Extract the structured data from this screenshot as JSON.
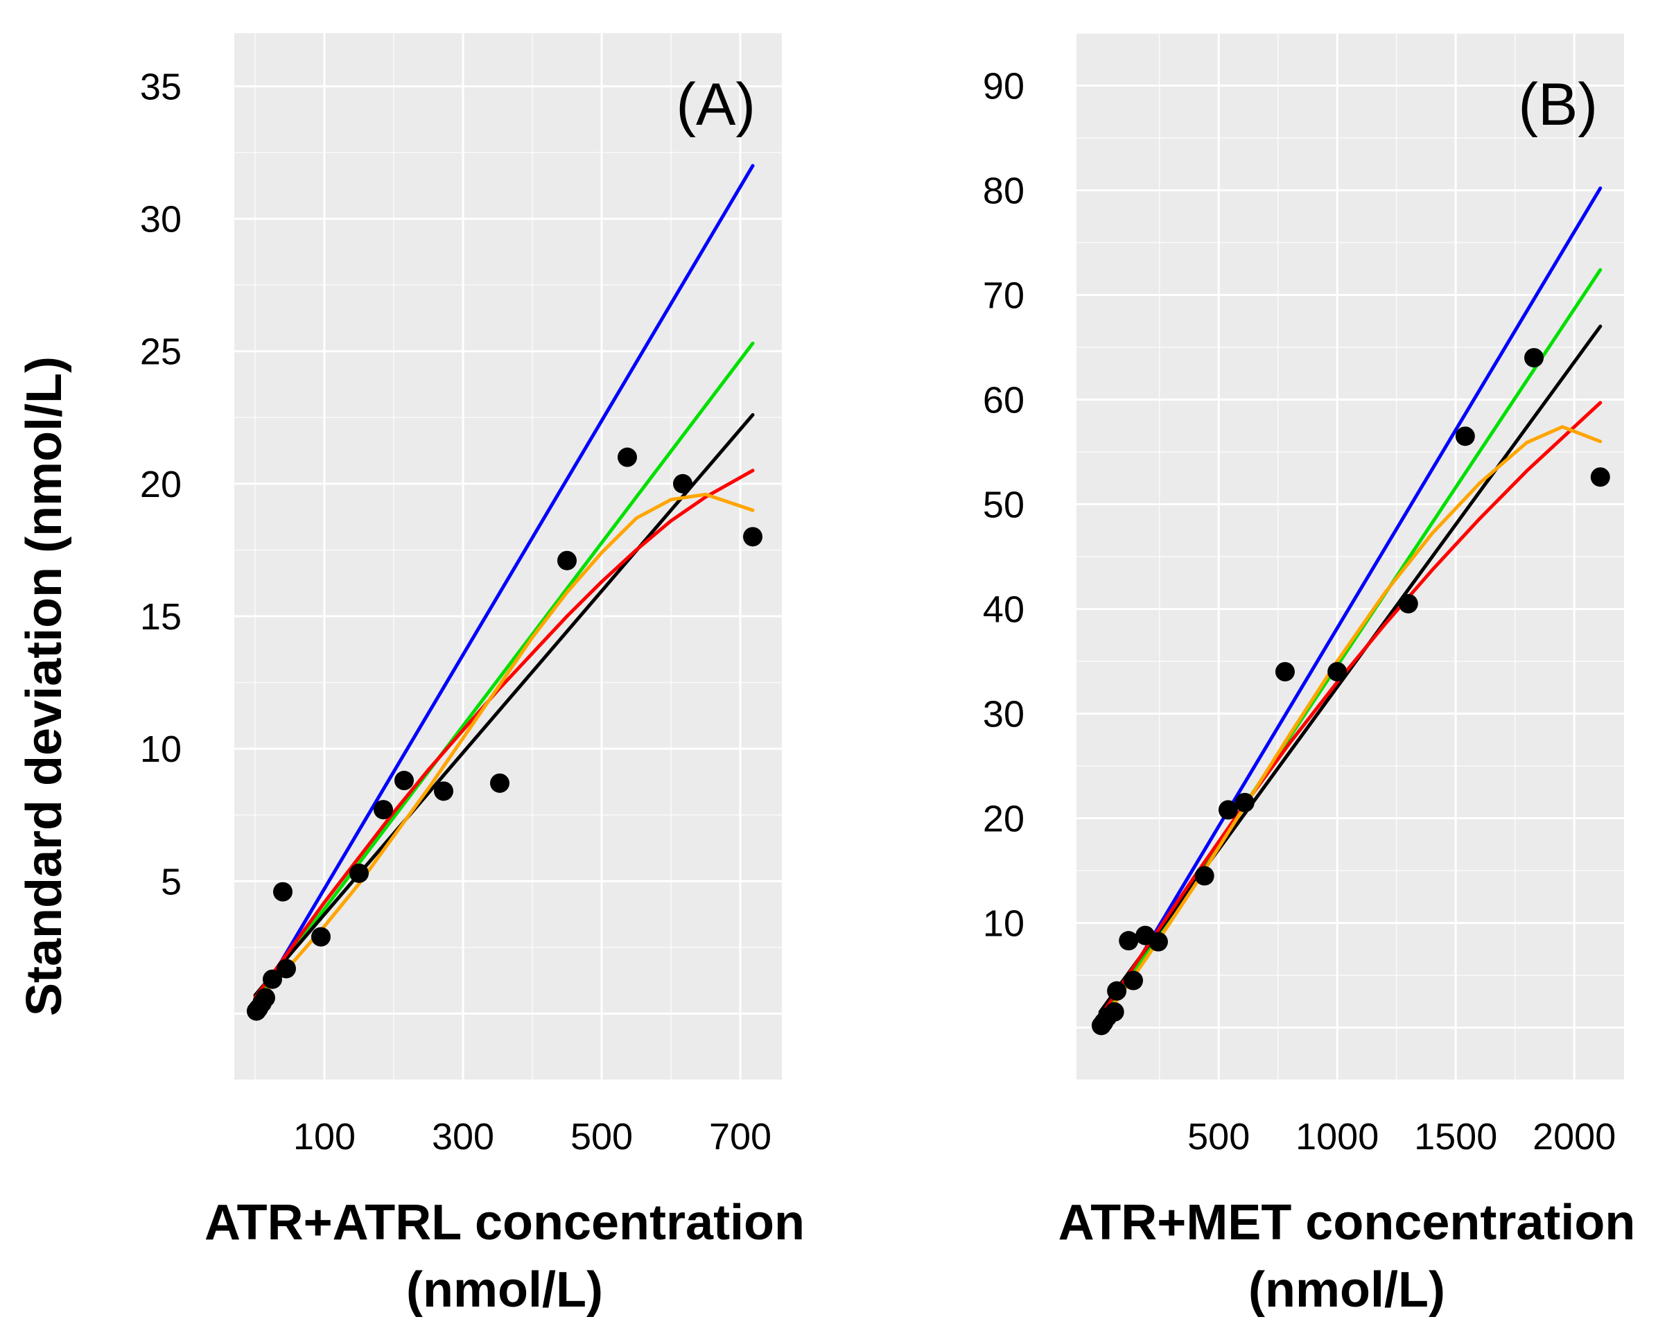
{
  "y_axis_title": "Standard deviation (nmol/L)",
  "colors": {
    "blue": "#0000ff",
    "green": "#00e000",
    "black": "#000000",
    "red": "#ff0000",
    "orange": "#ffa500",
    "points": "#000000",
    "panel_background": "#ebebeb"
  },
  "chart_data": [
    {
      "type": "scatter",
      "title": "(A)",
      "xlabel": "ATR+ATRL concentration (nmol/L)",
      "xlabel_lines": [
        "ATR+ATRL concentration",
        "(nmol/L)"
      ],
      "ylabel": "Standard deviation (nmol/L)",
      "xlim": [
        -30,
        760
      ],
      "ylim": [
        -2.5,
        37
      ],
      "x_ticks": [
        100,
        300,
        500,
        700
      ],
      "x_tick_labels": [
        "100",
        "300",
        "500",
        "700"
      ],
      "y_ticks": [
        5,
        10,
        15,
        20,
        25,
        30,
        35
      ],
      "y_tick_labels": [
        "5",
        "10",
        "15",
        "20",
        "25",
        "30",
        "35"
      ],
      "y_minor_ticks": [
        0
      ],
      "grid": true,
      "legend": "none",
      "points": [
        {
          "x": 2,
          "y": 0.1
        },
        {
          "x": 5,
          "y": 0.2
        },
        {
          "x": 10,
          "y": 0.4
        },
        {
          "x": 15,
          "y": 0.6
        },
        {
          "x": 25,
          "y": 1.3
        },
        {
          "x": 40,
          "y": 4.6
        },
        {
          "x": 45,
          "y": 1.7
        },
        {
          "x": 95,
          "y": 2.9
        },
        {
          "x": 150,
          "y": 5.3
        },
        {
          "x": 185,
          "y": 7.7
        },
        {
          "x": 215,
          "y": 8.8
        },
        {
          "x": 272,
          "y": 8.4
        },
        {
          "x": 353,
          "y": 8.7
        },
        {
          "x": 450,
          "y": 17.1
        },
        {
          "x": 537,
          "y": 21.0
        },
        {
          "x": 617,
          "y": 20.0
        },
        {
          "x": 718,
          "y": 18.0
        }
      ],
      "series": [
        {
          "name": "blue",
          "color": "#0000ff",
          "x": [
            0,
            718
          ],
          "y": [
            0.3,
            32.0
          ]
        },
        {
          "name": "green",
          "color": "#00e000",
          "x": [
            0,
            718
          ],
          "y": [
            0.5,
            25.3
          ]
        },
        {
          "name": "black",
          "color": "#000000",
          "x": [
            0,
            718
          ],
          "y": [
            0.7,
            22.6
          ]
        },
        {
          "name": "red",
          "color": "#ff0000",
          "x": [
            0,
            50,
            100,
            150,
            200,
            250,
            300,
            350,
            400,
            450,
            500,
            550,
            600,
            650,
            718
          ],
          "y": [
            0.6,
            2.4,
            4.2,
            5.9,
            7.6,
            9.2,
            10.7,
            12.2,
            13.6,
            15.0,
            16.3,
            17.5,
            18.6,
            19.5,
            20.5
          ]
        },
        {
          "name": "orange",
          "color": "#ffa500",
          "x": [
            0,
            50,
            100,
            150,
            200,
            250,
            300,
            350,
            400,
            450,
            500,
            550,
            600,
            650,
            718
          ],
          "y": [
            0.4,
            1.8,
            3.3,
            4.9,
            6.7,
            8.5,
            10.4,
            12.3,
            14.2,
            15.9,
            17.4,
            18.7,
            19.4,
            19.6,
            19.0
          ]
        }
      ]
    },
    {
      "type": "scatter",
      "title": "(B)",
      "xlabel": "ATR+MET concentration (nmol/L)",
      "xlabel_lines": [
        "ATR+MET concentration",
        "(nmol/L)"
      ],
      "ylabel": "",
      "xlim": [
        -100,
        2210
      ],
      "ylim": [
        -5,
        95
      ],
      "x_ticks": [
        500,
        1000,
        1500,
        2000
      ],
      "x_tick_labels": [
        "500",
        "1000",
        "1500",
        "2000"
      ],
      "y_ticks": [
        10,
        20,
        30,
        40,
        50,
        60,
        70,
        80,
        90
      ],
      "y_tick_labels": [
        "10",
        "20",
        "30",
        "40",
        "50",
        "60",
        "70",
        "80",
        "90"
      ],
      "y_minor_ticks": [
        0
      ],
      "grid": true,
      "legend": "none",
      "points": [
        {
          "x": 5,
          "y": 0.2
        },
        {
          "x": 15,
          "y": 0.5
        },
        {
          "x": 30,
          "y": 1.0
        },
        {
          "x": 60,
          "y": 1.5
        },
        {
          "x": 70,
          "y": 3.5
        },
        {
          "x": 120,
          "y": 8.3
        },
        {
          "x": 140,
          "y": 4.5
        },
        {
          "x": 190,
          "y": 8.8
        },
        {
          "x": 245,
          "y": 8.2
        },
        {
          "x": 440,
          "y": 14.5
        },
        {
          "x": 540,
          "y": 20.8
        },
        {
          "x": 610,
          "y": 21.5
        },
        {
          "x": 780,
          "y": 34.0
        },
        {
          "x": 1000,
          "y": 34.0
        },
        {
          "x": 1300,
          "y": 40.5
        },
        {
          "x": 1540,
          "y": 56.5
        },
        {
          "x": 1830,
          "y": 64.0
        },
        {
          "x": 2110,
          "y": 52.6
        }
      ],
      "series": [
        {
          "name": "blue",
          "color": "#0000ff",
          "x": [
            0,
            2110
          ],
          "y": [
            0.3,
            80.2
          ]
        },
        {
          "name": "green",
          "color": "#00e000",
          "x": [
            0,
            2110
          ],
          "y": [
            0.5,
            72.4
          ]
        },
        {
          "name": "black",
          "color": "#000000",
          "x": [
            0,
            2110
          ],
          "y": [
            1.5,
            67.0
          ]
        },
        {
          "name": "red",
          "color": "#ff0000",
          "x": [
            0,
            200,
            400,
            600,
            800,
            1000,
            1200,
            1400,
            1600,
            1800,
            2000,
            2110
          ],
          "y": [
            1.0,
            7.8,
            14.5,
            21.0,
            27.2,
            33.0,
            38.5,
            43.7,
            48.6,
            53.2,
            57.4,
            59.7
          ]
        },
        {
          "name": "orange",
          "color": "#ffa500",
          "x": [
            0,
            200,
            400,
            600,
            800,
            1000,
            1200,
            1400,
            1600,
            1800,
            1950,
            2110
          ],
          "y": [
            0.3,
            6.8,
            13.6,
            20.8,
            28.0,
            35.0,
            41.5,
            47.2,
            52.0,
            55.9,
            57.4,
            56.0
          ]
        }
      ]
    }
  ]
}
